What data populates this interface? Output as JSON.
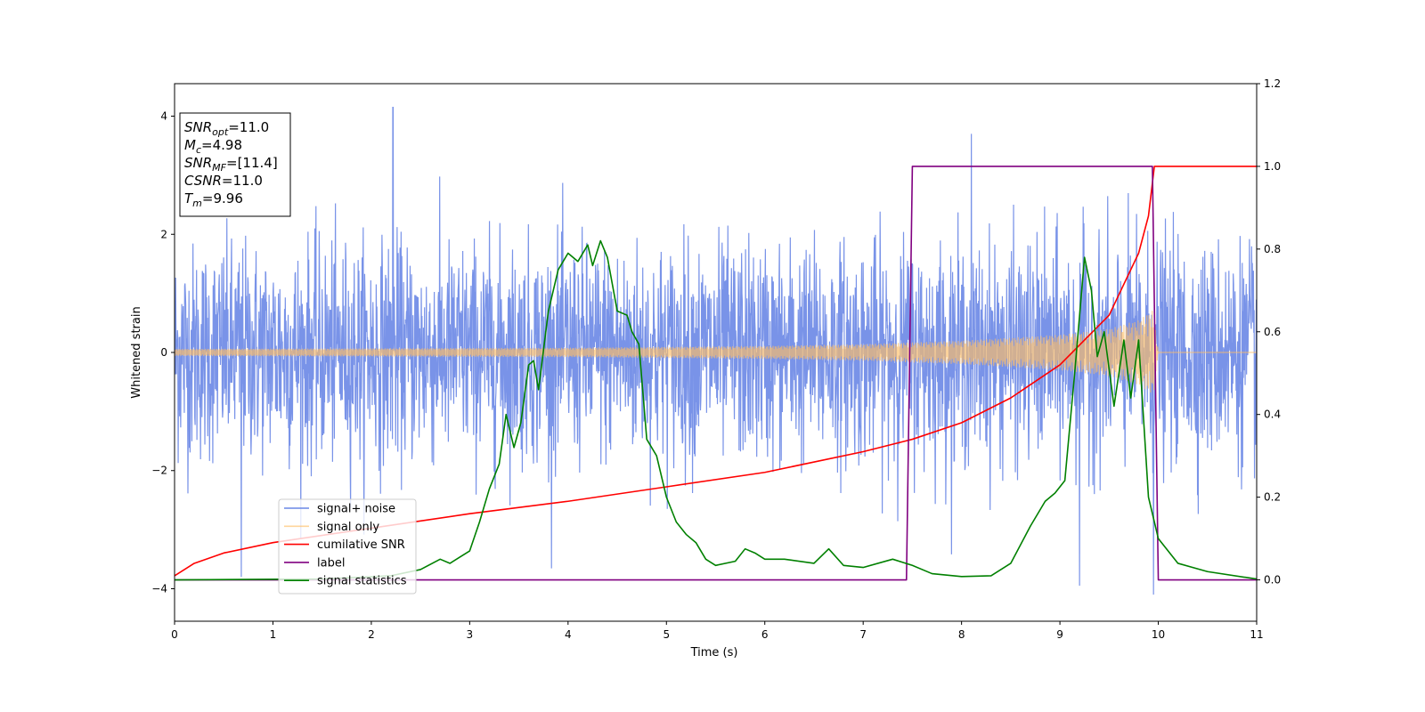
{
  "chart_data": {
    "type": "line",
    "xlabel": "Time (s)",
    "ylabel": "Whitened strain",
    "xlim": [
      0,
      11
    ],
    "ylim_left": [
      -4.55,
      4.55
    ],
    "ylim_right": [
      -0.1,
      1.2
    ],
    "x_ticks": [
      0,
      1,
      2,
      3,
      4,
      5,
      6,
      7,
      8,
      9,
      10,
      11
    ],
    "y_ticks_left": [
      -4,
      -2,
      0,
      2,
      4
    ],
    "y_ticks_right": [
      0.0,
      0.2,
      0.4,
      0.6,
      0.8,
      1.0,
      1.2
    ],
    "legend_position": "lower-left",
    "grid": false,
    "annotation": {
      "lines": [
        {
          "var": "SNR",
          "sub": "opt",
          "value": "=11.0"
        },
        {
          "var": "M",
          "sub": "c",
          "value": "=4.98"
        },
        {
          "var": "SNR",
          "sub": "MF",
          "value": "=[11.4]"
        },
        {
          "var": "CSNR",
          "sub": "",
          "value": "=11.0"
        },
        {
          "var": "T",
          "sub": "m",
          "value": "=9.96"
        }
      ]
    },
    "series": [
      {
        "name": "signal+ noise",
        "axis": "left",
        "color": "#6a87e6",
        "envelope": {
          "typical_amplitude": 2.0,
          "extremes": [
            [
              2.22,
              4.15
            ],
            [
              8.1,
              3.7
            ],
            [
              9.95,
              3.9
            ],
            [
              0.68,
              -3.8
            ],
            [
              9.2,
              -3.95
            ],
            [
              9.95,
              -4.1
            ]
          ]
        }
      },
      {
        "name": "signal only",
        "axis": "left",
        "color": "#ffbf66",
        "amplitude_points": [
          [
            0,
            0.06
          ],
          [
            2,
            0.07
          ],
          [
            4,
            0.08
          ],
          [
            6,
            0.11
          ],
          [
            7,
            0.14
          ],
          [
            8,
            0.2
          ],
          [
            9,
            0.3
          ],
          [
            9.5,
            0.4
          ],
          [
            9.8,
            0.55
          ],
          [
            9.95,
            0.72
          ],
          [
            10.0,
            0.0
          ],
          [
            11,
            0.0
          ]
        ]
      },
      {
        "name": "cumilative SNR",
        "axis": "right",
        "color": "#ff0000",
        "points": [
          [
            0,
            0.01
          ],
          [
            0.2,
            0.04
          ],
          [
            0.5,
            0.065
          ],
          [
            1,
            0.09
          ],
          [
            2,
            0.125
          ],
          [
            3,
            0.16
          ],
          [
            4,
            0.19
          ],
          [
            5,
            0.225
          ],
          [
            6,
            0.26
          ],
          [
            7,
            0.31
          ],
          [
            7.5,
            0.34
          ],
          [
            8,
            0.38
          ],
          [
            8.5,
            0.44
          ],
          [
            9,
            0.52
          ],
          [
            9.5,
            0.64
          ],
          [
            9.8,
            0.79
          ],
          [
            9.9,
            0.88
          ],
          [
            9.96,
            1.0
          ],
          [
            11,
            1.0
          ]
        ]
      },
      {
        "name": "label",
        "axis": "right",
        "color": "#800080",
        "points": [
          [
            0,
            0.0
          ],
          [
            7.44,
            0.0
          ],
          [
            7.5,
            1.0
          ],
          [
            9.94,
            1.0
          ],
          [
            10.0,
            0.0
          ],
          [
            11,
            0.0
          ]
        ]
      },
      {
        "name": "signal statistics",
        "axis": "right",
        "color": "#008000",
        "points": [
          [
            0,
            0.0
          ],
          [
            1.5,
            0.002
          ],
          [
            2.2,
            0.01
          ],
          [
            2.5,
            0.025
          ],
          [
            2.7,
            0.05
          ],
          [
            2.8,
            0.04
          ],
          [
            2.9,
            0.055
          ],
          [
            3.0,
            0.07
          ],
          [
            3.1,
            0.14
          ],
          [
            3.2,
            0.22
          ],
          [
            3.3,
            0.28
          ],
          [
            3.37,
            0.4
          ],
          [
            3.45,
            0.32
          ],
          [
            3.52,
            0.38
          ],
          [
            3.6,
            0.52
          ],
          [
            3.65,
            0.53
          ],
          [
            3.7,
            0.46
          ],
          [
            3.8,
            0.65
          ],
          [
            3.9,
            0.75
          ],
          [
            4.0,
            0.79
          ],
          [
            4.1,
            0.77
          ],
          [
            4.2,
            0.81
          ],
          [
            4.25,
            0.76
          ],
          [
            4.33,
            0.82
          ],
          [
            4.4,
            0.78
          ],
          [
            4.5,
            0.65
          ],
          [
            4.6,
            0.64
          ],
          [
            4.65,
            0.6
          ],
          [
            4.72,
            0.57
          ],
          [
            4.8,
            0.34
          ],
          [
            4.9,
            0.3
          ],
          [
            5.0,
            0.2
          ],
          [
            5.1,
            0.14
          ],
          [
            5.2,
            0.11
          ],
          [
            5.3,
            0.09
          ],
          [
            5.4,
            0.05
          ],
          [
            5.5,
            0.035
          ],
          [
            5.7,
            0.045
          ],
          [
            5.8,
            0.075
          ],
          [
            5.9,
            0.065
          ],
          [
            6.0,
            0.05
          ],
          [
            6.2,
            0.05
          ],
          [
            6.5,
            0.04
          ],
          [
            6.65,
            0.075
          ],
          [
            6.8,
            0.035
          ],
          [
            7.0,
            0.03
          ],
          [
            7.3,
            0.05
          ],
          [
            7.5,
            0.035
          ],
          [
            7.7,
            0.015
          ],
          [
            8.0,
            0.008
          ],
          [
            8.3,
            0.01
          ],
          [
            8.5,
            0.04
          ],
          [
            8.7,
            0.13
          ],
          [
            8.85,
            0.19
          ],
          [
            8.95,
            0.21
          ],
          [
            9.05,
            0.24
          ],
          [
            9.15,
            0.5
          ],
          [
            9.25,
            0.78
          ],
          [
            9.32,
            0.7
          ],
          [
            9.38,
            0.54
          ],
          [
            9.45,
            0.6
          ],
          [
            9.55,
            0.42
          ],
          [
            9.65,
            0.58
          ],
          [
            9.72,
            0.44
          ],
          [
            9.8,
            0.58
          ],
          [
            9.9,
            0.2
          ],
          [
            10.0,
            0.1
          ],
          [
            10.2,
            0.04
          ],
          [
            10.5,
            0.02
          ],
          [
            11,
            0.002
          ]
        ]
      }
    ]
  }
}
